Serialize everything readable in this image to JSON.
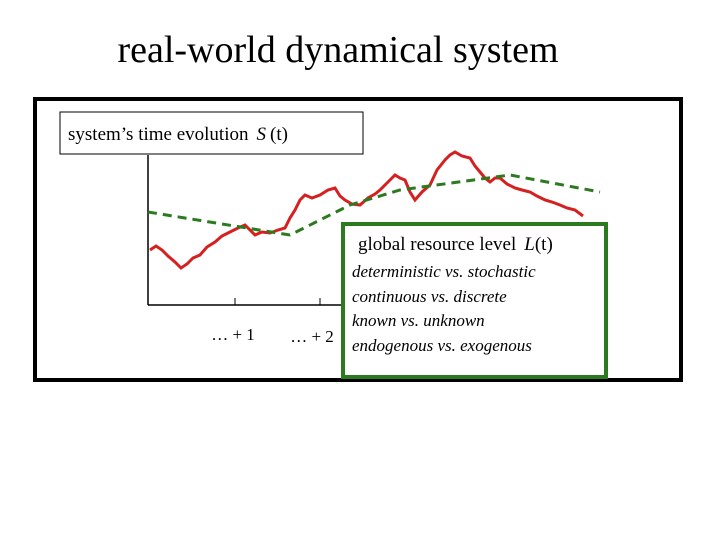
{
  "title": "real-world dynamical system",
  "evolution_label": {
    "text": "system’s time evolution",
    "symbol": "S",
    "arg": "(t)"
  },
  "tick_labels": [
    "… + 1",
    "… + 2"
  ],
  "resource_box": {
    "label": "global resource level",
    "symbol": "L",
    "arg": "(t)",
    "items": [
      "deterministic vs. stochastic",
      "continuous vs. discrete",
      "known vs. unknown",
      "endogenous vs. exogenous"
    ]
  }
}
